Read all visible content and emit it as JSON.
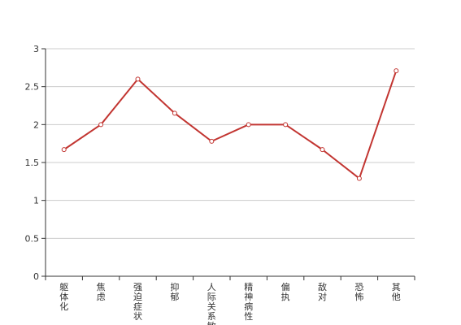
{
  "chart_data": {
    "type": "line",
    "categories": [
      "躯体化",
      "焦虑",
      "强迫症状",
      "抑郁",
      "人际关系敏感",
      "精神病性",
      "偏执",
      "敌对",
      "恐怖",
      "其他"
    ],
    "series": [
      {
        "values": [
          1.67,
          2.0,
          2.6,
          2.15,
          1.78,
          2.0,
          2.0,
          1.67,
          1.29,
          2.71
        ]
      }
    ],
    "yticks": [
      "0",
      "0.5",
      "1",
      "1.5",
      "2",
      "2.5",
      "3"
    ],
    "ylim": [
      0,
      3
    ],
    "grid": true,
    "line_color": "#c23531",
    "grid_color": "#cccccc",
    "axis_color": "#333333"
  }
}
